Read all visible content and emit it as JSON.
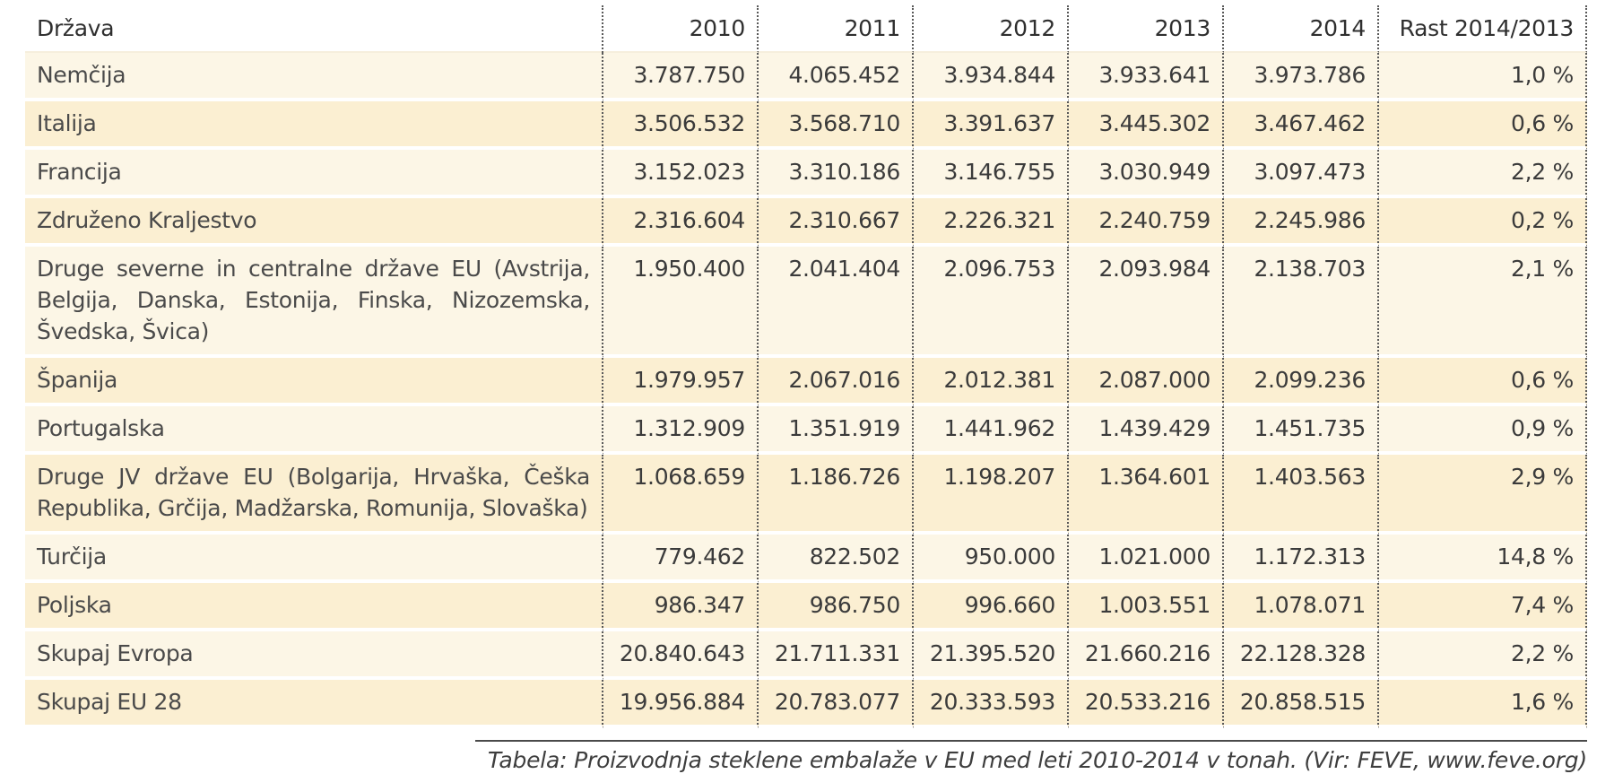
{
  "table": {
    "headers": [
      "Država",
      "2010",
      "2011",
      "2012",
      "2013",
      "2014",
      "Rast 2014/2013"
    ],
    "rows": [
      {
        "country": "Nemčija",
        "values": [
          "3.787.750",
          "4.065.452",
          "3.934.844",
          "3.933.641",
          "3.973.786",
          "1,0 %"
        ]
      },
      {
        "country": "Italija",
        "values": [
          "3.506.532",
          "3.568.710",
          "3.391.637",
          "3.445.302",
          "3.467.462",
          "0,6 %"
        ]
      },
      {
        "country": "Francija",
        "values": [
          "3.152.023",
          "3.310.186",
          "3.146.755",
          "3.030.949",
          "3.097.473",
          "2,2 %"
        ]
      },
      {
        "country": "Združeno Kraljestvo",
        "values": [
          "2.316.604",
          "2.310.667",
          "2.226.321",
          "2.240.759",
          "2.245.986",
          "0,2 %"
        ]
      },
      {
        "country": "Druge severne in centralne države EU (Avstrija, Belgija, Danska, Estonija, Finska, Nizozemska, Švedska, Švica)",
        "values": [
          "1.950.400",
          "2.041.404",
          "2.096.753",
          "2.093.984",
          "2.138.703",
          "2,1 %"
        ]
      },
      {
        "country": "Španija",
        "values": [
          "1.979.957",
          "2.067.016",
          "2.012.381",
          "2.087.000",
          "2.099.236",
          "0,6 %"
        ]
      },
      {
        "country": "Portugalska",
        "values": [
          "1.312.909",
          "1.351.919",
          "1.441.962",
          "1.439.429",
          "1.451.735",
          "0,9 %"
        ]
      },
      {
        "country": "Druge JV države EU (Bolgarija, Hrvaška, Češka Republika, Grčija, Madžarska, Romunija, Slovaška)",
        "values": [
          "1.068.659",
          "1.186.726",
          "1.198.207",
          "1.364.601",
          "1.403.563",
          "2,9 %"
        ]
      },
      {
        "country": "Turčija",
        "values": [
          "779.462",
          "822.502",
          "950.000",
          "1.021.000",
          "1.172.313",
          "14,8 %"
        ]
      },
      {
        "country": "Poljska",
        "values": [
          "986.347",
          "986.750",
          "996.660",
          "1.003.551",
          "1.078.071",
          "7,4 %"
        ]
      },
      {
        "country": "Skupaj Evropa",
        "values": [
          "20.840.643",
          "21.711.331",
          "21.395.520",
          "21.660.216",
          "22.128.328",
          "2,2 %"
        ]
      },
      {
        "country": "Skupaj EU 28",
        "values": [
          "19.956.884",
          "20.783.077",
          "20.333.593",
          "20.533.216",
          "20.858.515",
          "1,6 %"
        ]
      }
    ]
  },
  "caption": "Tabela: Proizvodnja steklene embalaže v EU med leti 2010-2014 v tonah. (Vir: FEVE, www.feve.org)",
  "colors": {
    "row_light": "#fcf6e6",
    "row_dark": "#fbefd2",
    "divider": "#595959"
  }
}
